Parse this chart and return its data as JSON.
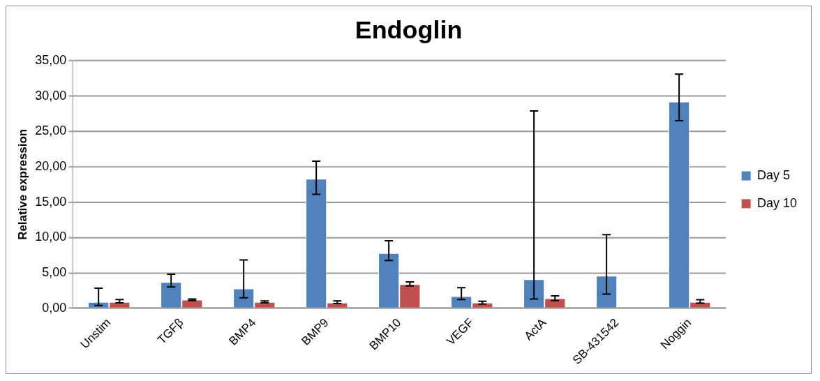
{
  "chart_data": {
    "type": "bar",
    "title": "Endoglin",
    "ylabel": "Relative expression",
    "categories": [
      "Unstim",
      "TGFβ",
      "BMP4",
      "BMP9",
      "BMP10",
      "VEGF",
      "ActA",
      "SB-431542",
      "Noggin"
    ],
    "series": [
      {
        "name": "Day 5",
        "color": "#4f81bd",
        "values": [
          0.9,
          3.7,
          2.8,
          18.3,
          7.8,
          1.7,
          4.1,
          4.6,
          29.2
        ],
        "errors": [
          [
            0.4,
            2.84
          ],
          [
            3.0,
            4.8
          ],
          [
            1.48,
            6.83
          ],
          [
            16.1,
            20.8
          ],
          [
            6.75,
            9.55
          ],
          [
            1.24,
            2.92
          ],
          [
            1.32,
            27.9
          ],
          [
            2.0,
            10.4
          ],
          [
            26.5,
            33.1
          ]
        ]
      },
      {
        "name": "Day 10",
        "color": "#c0504d",
        "values": [
          0.9,
          1.2,
          0.9,
          0.8,
          3.4,
          0.8,
          1.4,
          0.1,
          0.9
        ],
        "errors": [
          [
            0.76,
            1.24
          ],
          [
            1.08,
            1.32
          ],
          [
            0.76,
            1.04
          ],
          [
            0.68,
            1.04
          ],
          [
            3.16,
            3.72
          ],
          [
            0.6,
            1.0
          ],
          [
            1.08,
            1.76
          ],
          null,
          [
            0.72,
            1.2
          ]
        ]
      }
    ],
    "ylim": [
      0,
      35
    ],
    "yticks": [
      {
        "value": 0,
        "label": "0,00"
      },
      {
        "value": 5,
        "label": "5,00"
      },
      {
        "value": 10,
        "label": "10,00"
      },
      {
        "value": 15,
        "label": "15,00"
      },
      {
        "value": 20,
        "label": "20,00"
      },
      {
        "value": 25,
        "label": "25,00"
      },
      {
        "value": 30,
        "label": "30,00"
      },
      {
        "value": 35,
        "label": "35,00"
      }
    ],
    "grid": "y",
    "legend": "right"
  }
}
